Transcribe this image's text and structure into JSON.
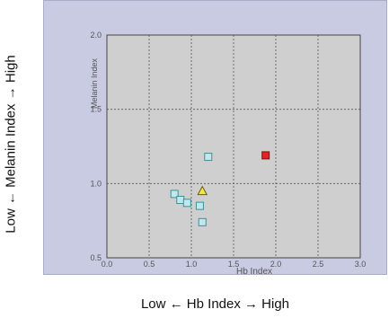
{
  "outer_labels": {
    "y": "Low ← Melanin Index → High",
    "x": "Low ← Hb Index → High"
  },
  "chart_data": {
    "type": "scatter",
    "xlabel": "Hb Index",
    "ylabel": "Melanin Index",
    "xlim": [
      0.0,
      3.0
    ],
    "ylim": [
      0.5,
      2.0
    ],
    "x_ticks": [
      "0.0",
      "0.5",
      "1.0",
      "1.5",
      "2.0",
      "2.5",
      "3.0"
    ],
    "y_ticks": [
      "0.5",
      "1.0",
      "1.5",
      "2.0"
    ],
    "grid": true,
    "colors": {
      "plot_bg": "#cfcfcf",
      "frame_bg": "#c8cbe2",
      "square_fill": "#bfe9ee",
      "square_stroke": "#3f8f9a",
      "red": "#e02424",
      "yellow": "#f3e64b"
    },
    "series": [
      {
        "marker": "square-cyan",
        "points": [
          [
            0.8,
            0.93
          ],
          [
            0.87,
            0.89
          ],
          [
            0.95,
            0.87
          ],
          [
            1.1,
            0.85
          ],
          [
            1.13,
            0.74
          ],
          [
            1.2,
            1.18
          ]
        ]
      },
      {
        "marker": "square-red",
        "points": [
          [
            1.88,
            1.19
          ]
        ]
      },
      {
        "marker": "triangle-yellow",
        "points": [
          [
            1.13,
            0.95
          ]
        ]
      }
    ]
  }
}
